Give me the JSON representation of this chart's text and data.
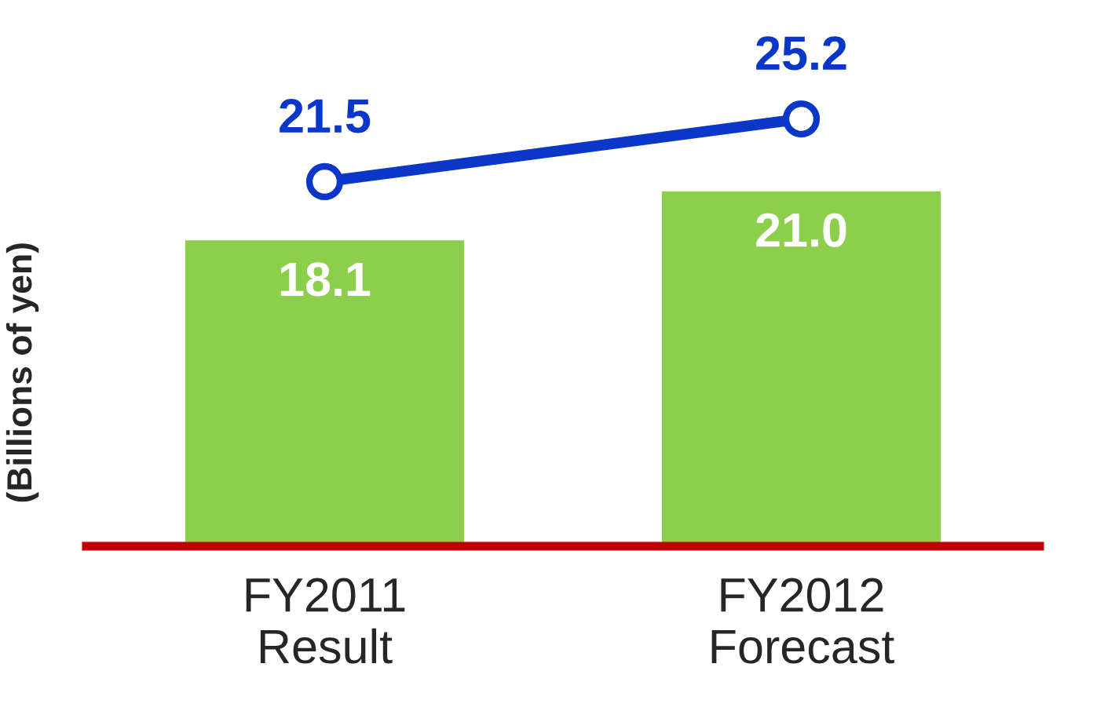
{
  "chart_data": {
    "type": "bar",
    "ylabel": "(Billions of yen)",
    "categories": [
      "FY2011\nResult",
      "FY2012\nForecast"
    ],
    "series": [
      {
        "color": "#8dcf4c",
        "values": [
          18.1,
          21.0
        ],
        "value_labels": [
          "18.1",
          "21.0"
        ]
      },
      {
        "type": "line",
        "color": "#0a37c8",
        "values": [
          21.5,
          25.2
        ],
        "value_labels": [
          "21.5",
          "25.2"
        ],
        "marker": "circle"
      }
    ],
    "tick_labels": "x"
  }
}
